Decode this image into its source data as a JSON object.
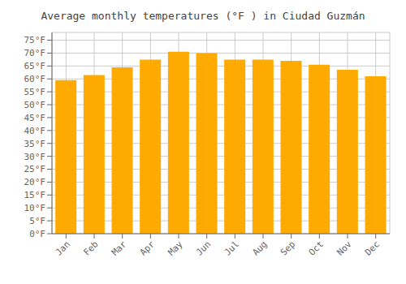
{
  "chart_data": {
    "type": "bar",
    "title": "Average monthly temperatures (°F ) in Ciudad Guzmán",
    "categories": [
      "Jan",
      "Feb",
      "Mar",
      "Apr",
      "May",
      "Jun",
      "Jul",
      "Aug",
      "Sep",
      "Oct",
      "Nov",
      "Dec"
    ],
    "values": [
      59.5,
      61.5,
      64.5,
      67.5,
      70.5,
      70.0,
      67.5,
      67.5,
      67.0,
      65.5,
      63.5,
      61.0
    ],
    "color": "#FFAA00",
    "ylim": [
      0,
      78
    ],
    "yticks": [
      {
        "value": 0,
        "label": "0°F"
      },
      {
        "value": 5,
        "label": "5°F"
      },
      {
        "value": 10,
        "label": "10°F"
      },
      {
        "value": 15,
        "label": "15°F"
      },
      {
        "value": 20,
        "label": "20°F"
      },
      {
        "value": 25,
        "label": "25°F"
      },
      {
        "value": 30,
        "label": "30°F"
      },
      {
        "value": 35,
        "label": "35°F"
      },
      {
        "value": 40,
        "label": "40°F"
      },
      {
        "value": 45,
        "label": "45°F"
      },
      {
        "value": 50,
        "label": "50°F"
      },
      {
        "value": 55,
        "label": "55°F"
      },
      {
        "value": 60,
        "label": "60°F"
      },
      {
        "value": 65,
        "label": "65°F"
      },
      {
        "value": 70,
        "label": "70°F"
      },
      {
        "value": 75,
        "label": "75°F"
      }
    ],
    "grid": true
  }
}
